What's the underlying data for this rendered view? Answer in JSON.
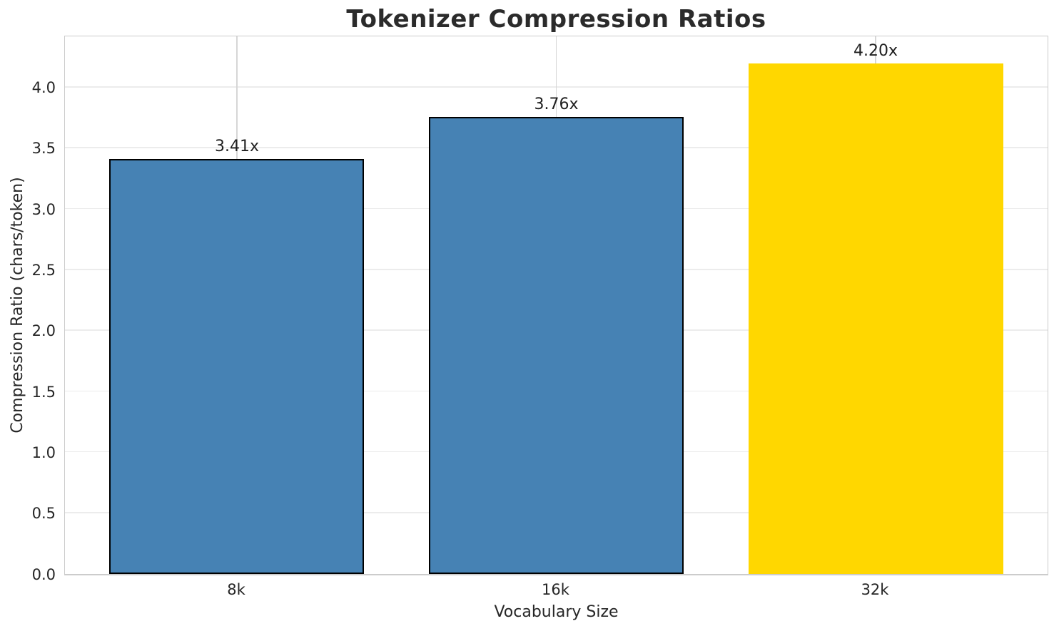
{
  "chart_data": {
    "type": "bar",
    "title": "Tokenizer Compression Ratios",
    "xlabel": "Vocabulary Size",
    "ylabel": "Compression Ratio (chars/token)",
    "categories": [
      "8k",
      "16k",
      "32k"
    ],
    "values": [
      3.41,
      3.76,
      4.2
    ],
    "bar_labels": [
      "3.41x",
      "3.76x",
      "4.20x"
    ],
    "ylim": [
      0,
      4.42
    ],
    "yticks": [
      0,
      0.5,
      1,
      1.5,
      2,
      2.5,
      3,
      3.5,
      4
    ],
    "ytick_labels": [
      "0.0",
      "0.5",
      "1.0",
      "1.5",
      "2.0",
      "2.5",
      "3.0",
      "3.5",
      "4.0"
    ],
    "grid": "horizontal and vertical, on",
    "legend_position": "none",
    "colors": {
      "bar_fills": [
        "#4682B4",
        "#4682B4",
        "#FFD700"
      ],
      "bar_edges": [
        "#000000",
        "#000000",
        "none"
      ],
      "grid_horizontal": "#ececec",
      "grid_vertical": "#d6d6d6",
      "spine": "#cccccc",
      "title_text": "#2b2b2b",
      "tick_text": "#262626",
      "background": "#ffffff"
    }
  }
}
